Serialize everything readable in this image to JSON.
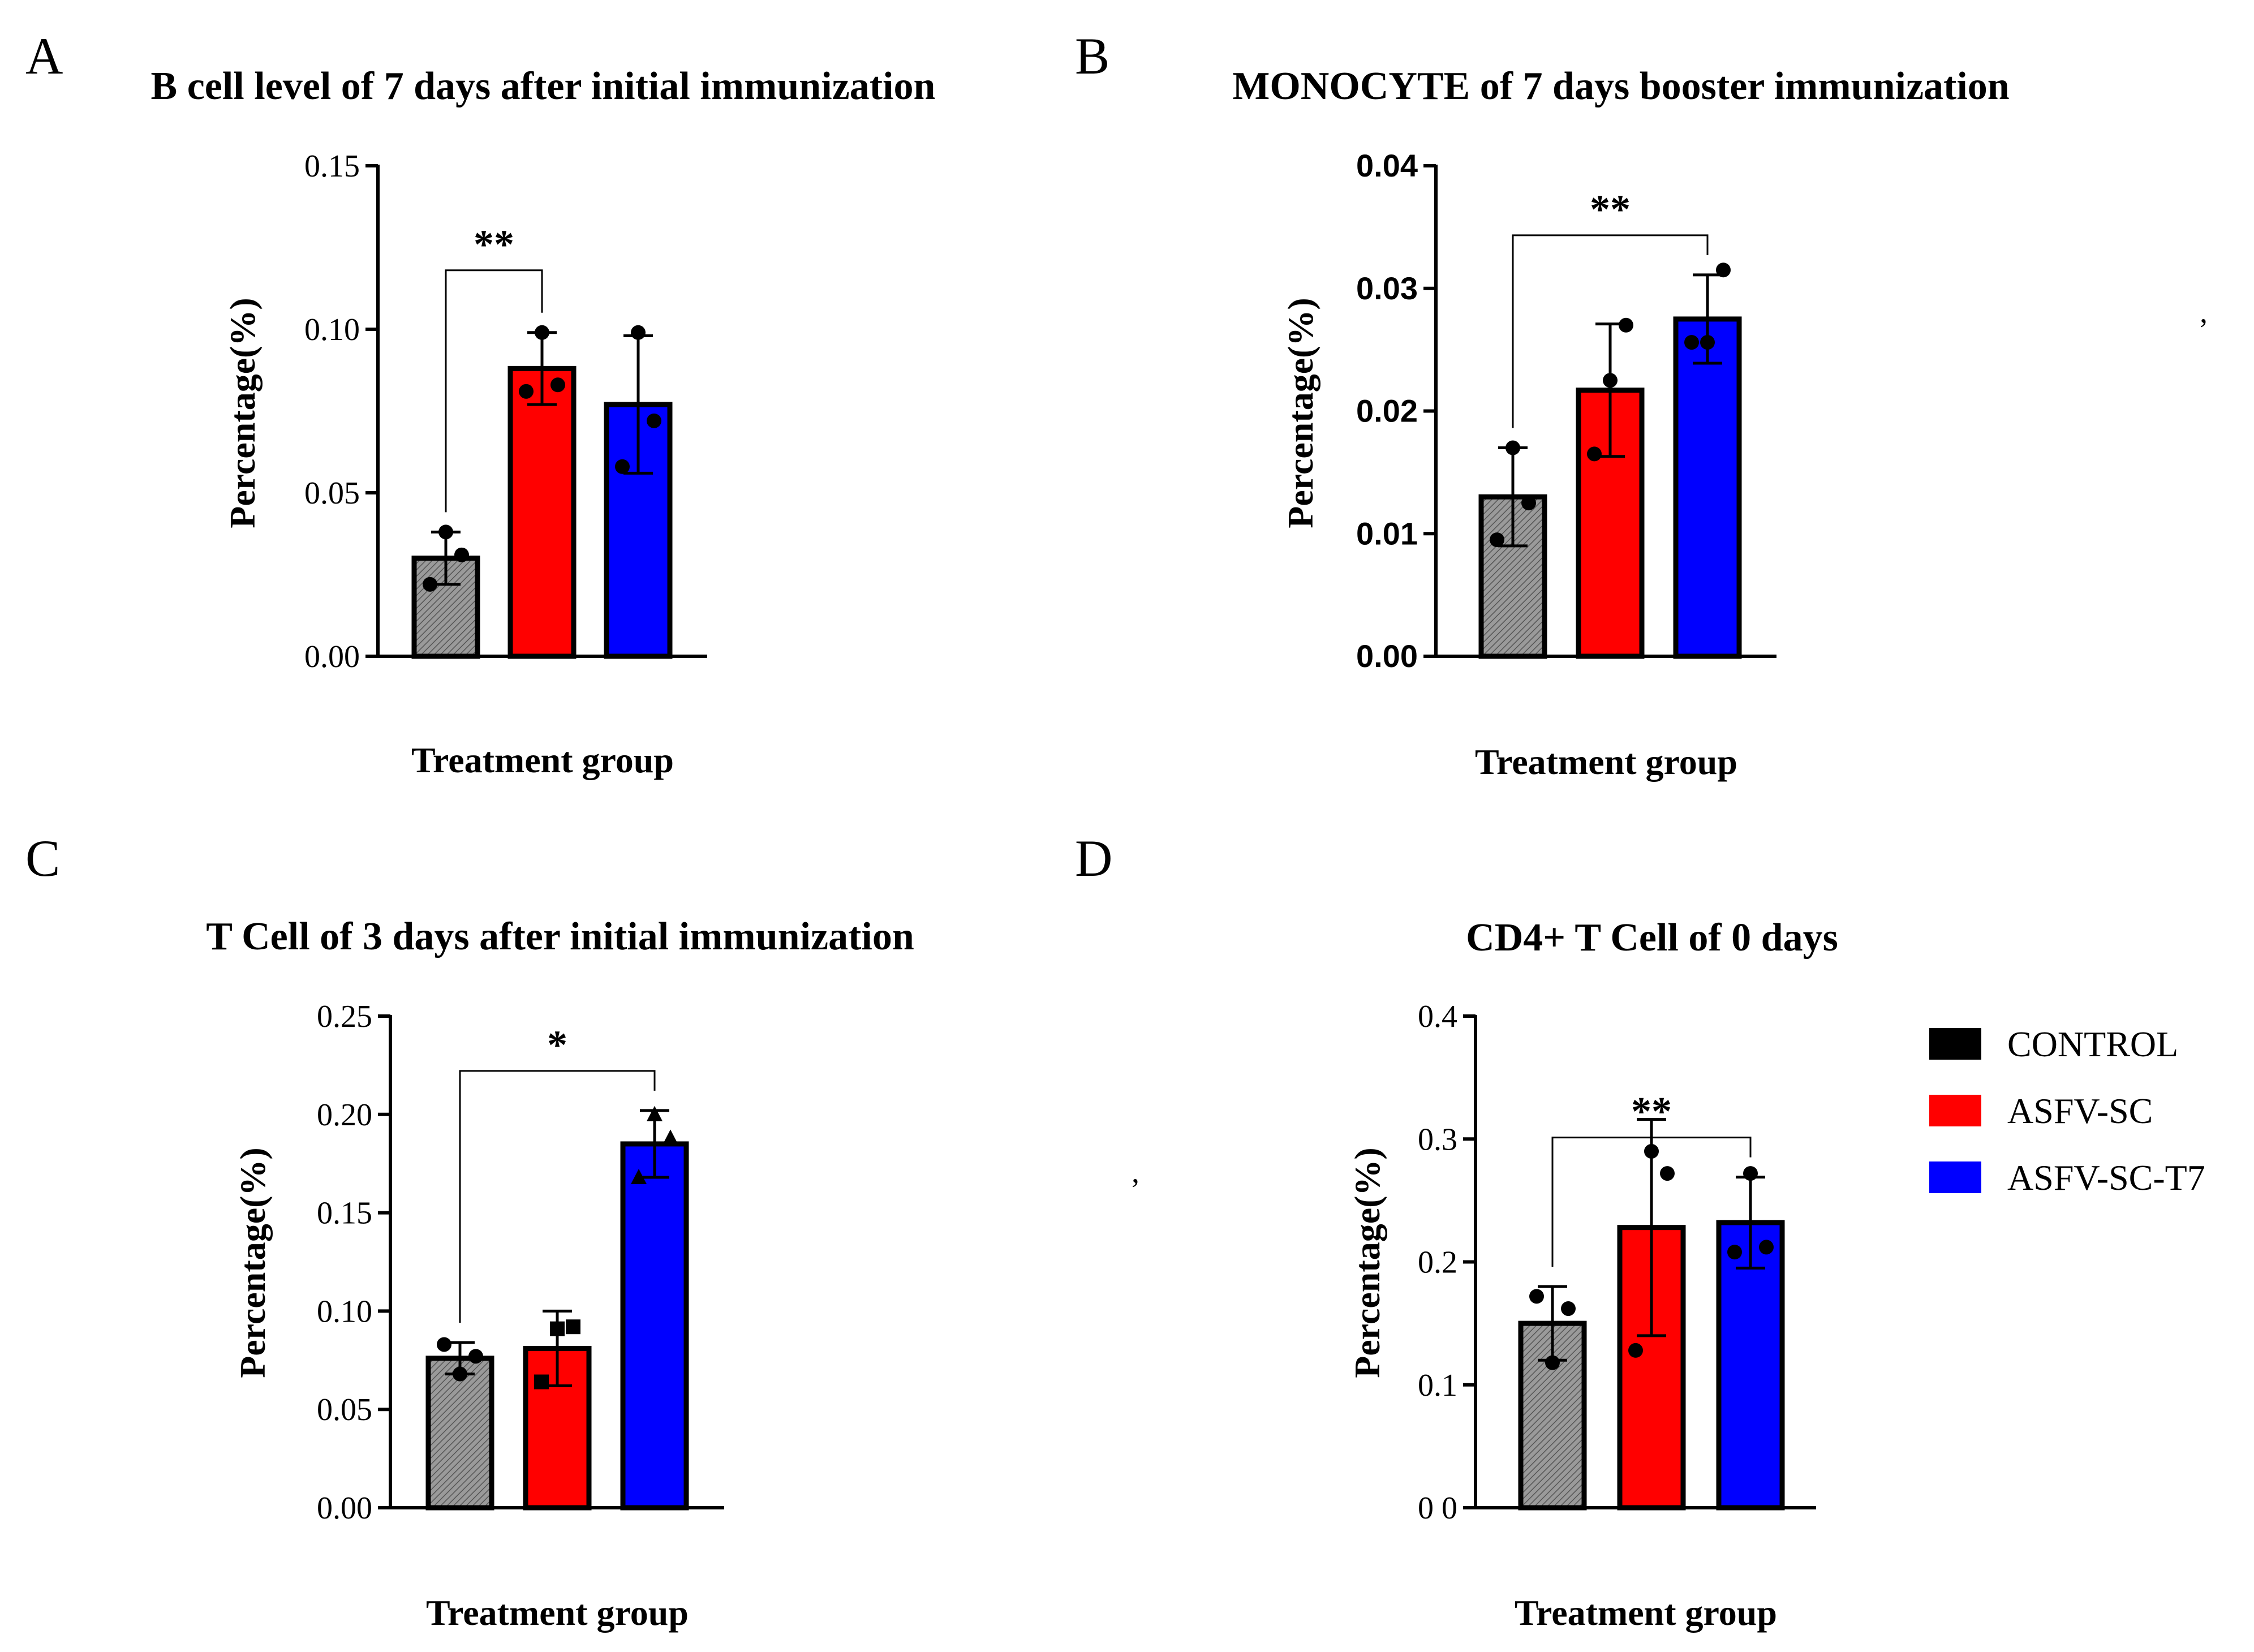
{
  "legend": {
    "entries": [
      {
        "label": "CONTROL",
        "color": "#000000"
      },
      {
        "label": "ASFV-SC",
        "color": "#ff0000"
      },
      {
        "label": "ASFV-SC-T7",
        "color": "#0000ff"
      }
    ]
  },
  "styles": {
    "control_fill": "#8a8a8a",
    "bar_edge": "#000000",
    "asfv_sc_fill": "#ff0000",
    "asfv_sc_t7_fill": "#0000ff"
  },
  "chart_data": [
    {
      "type": "bar",
      "panel": "A",
      "title": "B cell level of 7 days after initial immunization",
      "xlabel": "Treatment group",
      "ylabel": "Percentage(%)",
      "ylim": [
        0,
        0.15
      ],
      "yticks": [
        "0.00",
        "0.05",
        "0.10",
        "0.15"
      ],
      "tick_font": "serif",
      "categories": [
        "CONTROL",
        "ASFV-SC",
        "ASFV-SC-T7"
      ],
      "values": [
        0.03,
        0.088,
        0.077
      ],
      "error_bars": [
        0.008,
        0.011,
        0.021
      ],
      "points": [
        [
          0.022,
          0.038,
          0.031
        ],
        [
          0.081,
          0.099,
          0.083
        ],
        [
          0.058,
          0.099,
          0.072
        ]
      ],
      "marker": "circle",
      "significance": {
        "from": 0,
        "to": 1,
        "label": "**"
      }
    },
    {
      "type": "bar",
      "panel": "B",
      "title": "MONOCYTE of 7 days booster immunization",
      "xlabel": "Treatment group",
      "ylabel": "Percentage(%)",
      "ylim": [
        0,
        0.04
      ],
      "yticks": [
        "0.00",
        "0.01",
        "0.02",
        "0.03",
        "0.04"
      ],
      "tick_font": "sans",
      "categories": [
        "CONTROL",
        "ASFV-SC",
        "ASFV-SC-T7"
      ],
      "values": [
        0.013,
        0.0217,
        0.0275
      ],
      "error_bars": [
        0.004,
        0.0054,
        0.0036
      ],
      "points": [
        [
          0.0095,
          0.017,
          0.0125
        ],
        [
          0.0165,
          0.0225,
          0.027
        ],
        [
          0.0256,
          0.0256,
          0.0315
        ]
      ],
      "marker": "circle",
      "significance": {
        "from": 0,
        "to": 2,
        "label": "**"
      }
    },
    {
      "type": "bar",
      "panel": "C",
      "title": "T Cell of 3 days after initial immunization",
      "xlabel": "Treatment group",
      "ylabel": "Percentage(%)",
      "ylim": [
        0,
        0.25
      ],
      "yticks": [
        "0.00",
        "0.05",
        "0.10",
        "0.15",
        "0.20",
        "0.25"
      ],
      "tick_font": "serif",
      "categories": [
        "CONTROL",
        "ASFV-SC",
        "ASFV-SC-T7"
      ],
      "values": [
        0.076,
        0.081,
        0.185
      ],
      "error_bars": [
        0.008,
        0.019,
        0.017
      ],
      "points": [
        [
          0.083,
          0.068,
          0.077
        ],
        [
          0.064,
          0.091,
          0.092
        ],
        [
          0.168,
          0.2,
          0.188
        ]
      ],
      "marker": "mixed",
      "markers": [
        "circle",
        "square",
        "triangle"
      ],
      "significance": {
        "from": 0,
        "to": 2,
        "label": "*"
      }
    },
    {
      "type": "bar",
      "panel": "D",
      "title": "CD4+ T Cell of 0 days",
      "xlabel": "Treatment group",
      "ylabel": "Percentage(%)",
      "ylim": [
        0,
        0.4
      ],
      "yticks": [
        "0 0",
        "0.1",
        "0.2",
        "0.3",
        "0.4"
      ],
      "tick_font": "serif",
      "categories": [
        "CONTROL",
        "ASFV-SC",
        "ASFV-SC-T7"
      ],
      "values": [
        0.15,
        0.228,
        0.232
      ],
      "error_bars": [
        0.03,
        0.088,
        0.037
      ],
      "points": [
        [
          0.172,
          0.118,
          0.162
        ],
        [
          0.128,
          0.29,
          0.272
        ],
        [
          0.208,
          0.272,
          0.212
        ]
      ],
      "marker": "circle",
      "significance": {
        "from": 0,
        "to": 2,
        "label": "**"
      }
    }
  ]
}
